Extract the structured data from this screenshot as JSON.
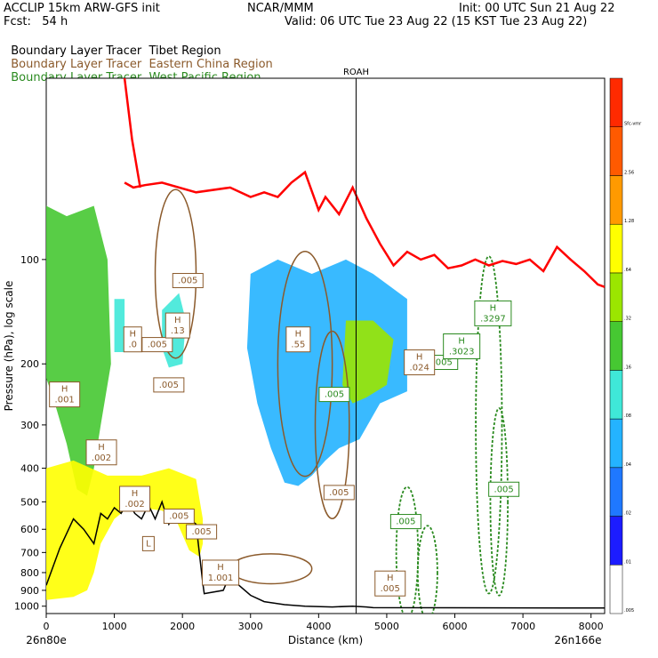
{
  "header": {
    "left_line1": "ACCLIP 15km ARW-GFS init",
    "left_line2": "Fcst:   54 h",
    "center_line1": "NCAR/MMM",
    "right_line1": "Init: 00 UTC Sun 21 Aug 22",
    "right_line2": "Valid: 06 UTC Tue 23 Aug 22 (15 KST Tue 23 Aug 22)",
    "legend": [
      {
        "name": "Boundary Layer Tracer",
        "region": "Tibet Region",
        "color": "#000000"
      },
      {
        "name": "Boundary Layer Tracer",
        "region": "Eastern China Region",
        "color": "#8b5a2b"
      },
      {
        "name": "Boundary Layer Tracer",
        "region": "West Pacific Region",
        "color": "#2a8a1f"
      }
    ]
  },
  "chart_data": {
    "type": "cross-section",
    "xlabel": "Distance (km)",
    "ylabel": "Pressure (hPa), log scale",
    "x_ticks": [
      0,
      1000,
      2000,
      3000,
      4000,
      5000,
      6000,
      7000,
      8000
    ],
    "y_ticks": [
      100,
      200,
      300,
      400,
      500,
      600,
      700,
      800,
      900,
      1000
    ],
    "y_scale": "log",
    "x_range": [
      0,
      8200
    ],
    "y_range": [
      30,
      1050
    ],
    "x_start_label": "26n80e",
    "x_end_label": "26n166e",
    "vertical_marker": {
      "x": 4550,
      "label": "ROAH"
    },
    "colorbar": {
      "levels": [
        ".005",
        ".01",
        ".02",
        ".04",
        ".08",
        ".16",
        ".32",
        ".64",
        "1.28",
        "2.56",
        "Sfc-vmr"
      ],
      "colors": [
        "#ffffff",
        "#1c1cff",
        "#1f78ff",
        "#24b3ff",
        "#3fe8d8",
        "#46c832",
        "#9be600",
        "#ffff00",
        "#ff9a00",
        "#ff5a00",
        "#ff2a00"
      ]
    },
    "contour_labels": [
      {
        "text": ".005",
        "x": 1630,
        "y": 176,
        "color": "#8b5a2b"
      },
      {
        "text": ".005",
        "x": 1800,
        "y": 230,
        "color": "#8b5a2b"
      },
      {
        "text": ".005",
        "x": 2080,
        "y": 115,
        "color": "#8b5a2b"
      },
      {
        "text": ".005",
        "x": 4300,
        "y": 470,
        "color": "#8b5a2b"
      },
      {
        "text": ".005",
        "x": 4230,
        "y": 245,
        "color": "#2a8a1f"
      },
      {
        "text": ".005",
        "x": 5820,
        "y": 198,
        "color": "#2a8a1f"
      },
      {
        "text": ".005",
        "x": 6720,
        "y": 460,
        "color": "#2a8a1f"
      },
      {
        "text": ".005",
        "x": 5280,
        "y": 570,
        "color": "#2a8a1f"
      },
      {
        "text": ".005",
        "x": 1950,
        "y": 550,
        "color": "#8b5a2b"
      },
      {
        "text": ".005",
        "x": 2280,
        "y": 610,
        "color": "#8b5a2b"
      }
    ],
    "extrema_labels": [
      {
        "text": "H\n.001",
        "x": 270,
        "y": 245,
        "color": "#8b5a2b"
      },
      {
        "text": "H\n.002",
        "x": 810,
        "y": 360,
        "color": "#8b5a2b"
      },
      {
        "text": "H\n.002",
        "x": 1300,
        "y": 490,
        "color": "#8b5a2b"
      },
      {
        "text": "H\n.024",
        "x": 5480,
        "y": 198,
        "color": "#8b5a2b"
      },
      {
        "text": "H\n1.001",
        "x": 2560,
        "y": 800,
        "color": "#8b5a2b"
      },
      {
        "text": "H\n.13",
        "x": 1930,
        "y": 155,
        "color": "#8b5a2b"
      },
      {
        "text": "H\n.0",
        "x": 1270,
        "y": 170,
        "color": "#8b5a2b"
      },
      {
        "text": "H\n.55",
        "x": 3700,
        "y": 170,
        "color": "#8b5a2b"
      },
      {
        "text": "H\n.3297",
        "x": 6560,
        "y": 143,
        "color": "#2a8a1f"
      },
      {
        "text": "H\n.3023",
        "x": 6100,
        "y": 178,
        "color": "#2a8a1f"
      },
      {
        "text": "H\n.005",
        "x": 5050,
        "y": 860,
        "color": "#8b5a2b"
      },
      {
        "text": "L",
        "x": 1500,
        "y": 660,
        "color": "#8b5a2b"
      }
    ],
    "tropopause_line": {
      "color": "#ff0000",
      "x": [
        1150,
        1280,
        1450,
        1700,
        2200,
        2700,
        3000,
        3200,
        3400,
        3600,
        3800,
        4000,
        4100,
        4300,
        4500,
        4700,
        4900,
        5100,
        5300,
        5500,
        5700,
        5900,
        6100,
        6300,
        6500,
        6700,
        6900,
        7100,
        7300,
        7500,
        7700,
        7900,
        8100,
        8200
      ],
      "y": [
        60,
        62,
        61,
        60,
        64,
        62,
        66,
        64,
        66,
        60,
        56,
        72,
        66,
        74,
        62,
        76,
        90,
        104,
        95,
        100,
        97,
        106,
        104,
        100,
        104,
        101,
        103,
        100,
        108,
        92,
        100,
        108,
        118,
        120
      ]
    },
    "tropopause_left": {
      "color": "#ff0000",
      "x": [
        1150,
        1260,
        1380
      ],
      "y": [
        30,
        45,
        62
      ]
    },
    "terrain": {
      "color": "#000000",
      "x": [
        0,
        200,
        400,
        550,
        700,
        800,
        900,
        1000,
        1100,
        1200,
        1300,
        1400,
        1500,
        1600,
        1700,
        1800,
        1900,
        2000,
        2100,
        2200,
        2300,
        2320,
        2600,
        2700,
        2800,
        3000,
        3200,
        3500,
        3800,
        4200,
        4500,
        4700,
        4800,
        8200
      ],
      "y": [
        870,
        680,
        560,
        600,
        660,
        540,
        560,
        520,
        540,
        500,
        540,
        560,
        510,
        560,
        500,
        580,
        530,
        560,
        560,
        580,
        860,
        920,
        900,
        810,
        860,
        930,
        970,
        990,
        1000,
        1005,
        1000,
        1005,
        1010,
        1012
      ]
    },
    "tracer_blobs": [
      {
        "level": 5,
        "points": [
          [
            0,
            70
          ],
          [
            300,
            75
          ],
          [
            700,
            70
          ],
          [
            900,
            100
          ],
          [
            950,
            200
          ],
          [
            800,
            300
          ],
          [
            700,
            400
          ],
          [
            600,
            480
          ],
          [
            450,
            460
          ],
          [
            300,
            340
          ],
          [
            100,
            250
          ],
          [
            0,
            220
          ]
        ]
      },
      {
        "level": 7,
        "points": [
          [
            0,
            400
          ],
          [
            400,
            380
          ],
          [
            900,
            420
          ],
          [
            1400,
            420
          ],
          [
            1800,
            400
          ],
          [
            2200,
            430
          ],
          [
            2300,
            560
          ],
          [
            2300,
            660
          ],
          [
            2250,
            720
          ],
          [
            2100,
            690
          ],
          [
            1900,
            560
          ],
          [
            1700,
            530
          ],
          [
            1400,
            520
          ],
          [
            1200,
            520
          ],
          [
            1000,
            560
          ],
          [
            800,
            660
          ],
          [
            700,
            800
          ],
          [
            600,
            900
          ],
          [
            400,
            940
          ],
          [
            0,
            960
          ]
        ]
      },
      {
        "level": 3,
        "points": [
          [
            3000,
            110
          ],
          [
            3400,
            100
          ],
          [
            3900,
            110
          ],
          [
            4400,
            100
          ],
          [
            4800,
            110
          ],
          [
            5300,
            130
          ],
          [
            5300,
            240
          ],
          [
            4900,
            260
          ],
          [
            4600,
            330
          ],
          [
            4300,
            350
          ],
          [
            4100,
            380
          ],
          [
            3900,
            420
          ],
          [
            3700,
            450
          ],
          [
            3500,
            440
          ],
          [
            3300,
            350
          ],
          [
            3100,
            260
          ],
          [
            2950,
            180
          ]
        ]
      },
      {
        "level": 6,
        "points": [
          [
            4400,
            150
          ],
          [
            4800,
            150
          ],
          [
            5100,
            170
          ],
          [
            5000,
            230
          ],
          [
            4700,
            250
          ],
          [
            4500,
            260
          ],
          [
            4350,
            230
          ]
        ]
      },
      {
        "level": 4,
        "points": [
          [
            1700,
            140
          ],
          [
            1950,
            125
          ],
          [
            2050,
            150
          ],
          [
            2000,
            200
          ],
          [
            1800,
            205
          ],
          [
            1700,
            180
          ]
        ]
      },
      {
        "level": 4,
        "points": [
          [
            1000,
            130
          ],
          [
            1150,
            130
          ],
          [
            1150,
            185
          ],
          [
            1000,
            185
          ]
        ]
      }
    ]
  }
}
